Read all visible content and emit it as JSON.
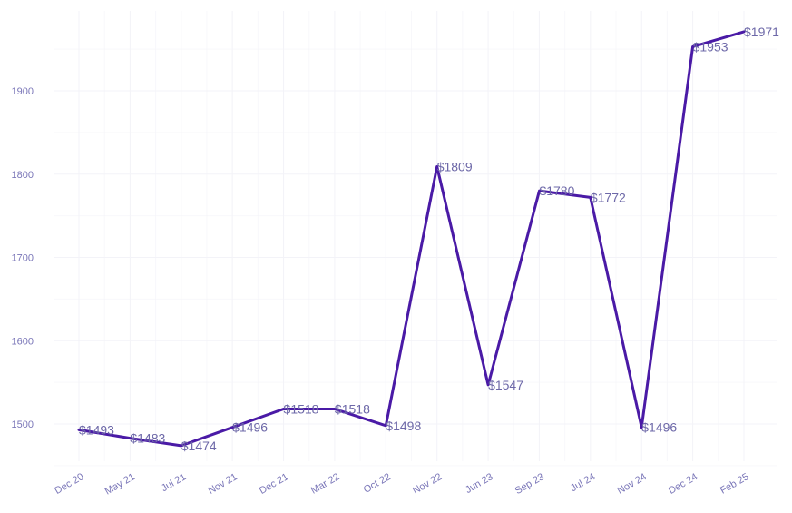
{
  "chart_data": {
    "type": "line",
    "title": "",
    "xlabel": "",
    "ylabel": "",
    "categories": [
      "Dec 20",
      "May 21",
      "Jul 21",
      "Nov 21",
      "Dec 21",
      "Mar 22",
      "Oct 22",
      "Nov 22",
      "Jun 23",
      "Sep 23",
      "Jul 24",
      "Nov 24",
      "Dec 24",
      "Feb 25"
    ],
    "values": [
      1493,
      1483,
      1474,
      1496,
      1518,
      1518,
      1498,
      1809,
      1547,
      1780,
      1772,
      1496,
      1953,
      1971
    ],
    "data_labels": [
      "$1493",
      "$1483",
      "$1474",
      "$1496",
      "$1518",
      "$1518",
      "$1498",
      "$1809",
      "$1547",
      "$1780",
      "$1772",
      "$1496",
      "$1953",
      "$1971"
    ],
    "y_ticks": [
      1500,
      1600,
      1700,
      1800,
      1900
    ],
    "y_tick_labels": [
      "1500",
      "1600",
      "1700",
      "1800",
      "1900"
    ],
    "ylim": [
      1450,
      1990
    ],
    "grid": true,
    "legend": "none",
    "line_color": "#4a1aa6",
    "label_color": "#6d68a8",
    "tick_color": "#7a76b8"
  }
}
